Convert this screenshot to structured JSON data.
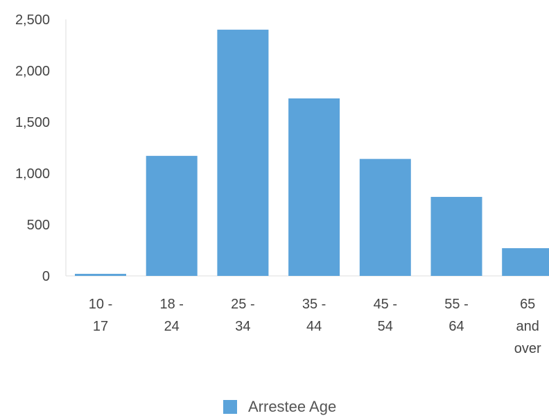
{
  "chart_data": {
    "type": "bar",
    "categories": [
      [
        "10 -",
        "17"
      ],
      [
        "18 -",
        "24"
      ],
      [
        "25 -",
        "34"
      ],
      [
        "35 -",
        "44"
      ],
      [
        "45 -",
        "54"
      ],
      [
        "55 -",
        "64"
      ],
      [
        "65",
        "and",
        "over"
      ]
    ],
    "series": [
      {
        "name": "Arrestee Age",
        "values": [
          20,
          1170,
          2400,
          1730,
          1140,
          770,
          270
        ]
      }
    ],
    "y_ticks": [
      "0",
      "500",
      "1,000",
      "1,500",
      "2,000",
      "2,500"
    ],
    "ylim": [
      0,
      2500
    ],
    "legend": "bottom",
    "grid": false,
    "bar_color": "#5ba3da",
    "axis_color": "#dddddd"
  }
}
